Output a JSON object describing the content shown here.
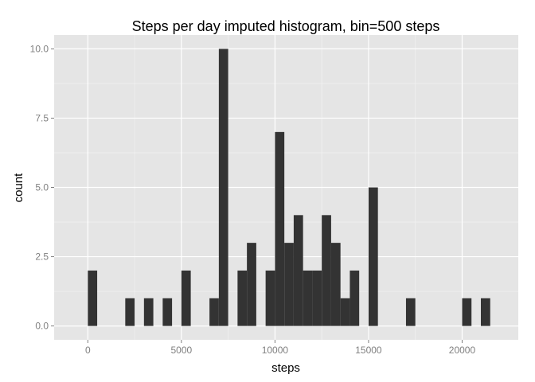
{
  "chart_data": {
    "type": "bar",
    "title": "Steps per day imputed histogram, bin=500 steps",
    "xlabel": "steps",
    "ylabel": "count",
    "bin_width": 500,
    "xlim": [
      -1800,
      23000
    ],
    "ylim": [
      -0.5,
      10.5
    ],
    "x_ticks": [
      0,
      5000,
      10000,
      15000,
      20000
    ],
    "x_tick_labels": [
      "0",
      "5000",
      "10000",
      "15000",
      "20000"
    ],
    "y_ticks": [
      0,
      2.5,
      5,
      7.5,
      10
    ],
    "y_tick_labels": [
      "0.0",
      "2.5",
      "5.0",
      "7.5",
      "10.0"
    ],
    "grid": true,
    "bins": [
      {
        "x0": 0,
        "x1": 500,
        "count": 2
      },
      {
        "x0": 2000,
        "x1": 2500,
        "count": 1
      },
      {
        "x0": 3000,
        "x1": 3500,
        "count": 1
      },
      {
        "x0": 4000,
        "x1": 4500,
        "count": 1
      },
      {
        "x0": 5000,
        "x1": 5500,
        "count": 2
      },
      {
        "x0": 6500,
        "x1": 7000,
        "count": 1
      },
      {
        "x0": 7000,
        "x1": 7500,
        "count": 10
      },
      {
        "x0": 8000,
        "x1": 8500,
        "count": 2
      },
      {
        "x0": 8500,
        "x1": 9000,
        "count": 3
      },
      {
        "x0": 9500,
        "x1": 10000,
        "count": 2
      },
      {
        "x0": 10000,
        "x1": 10500,
        "count": 7
      },
      {
        "x0": 10500,
        "x1": 11000,
        "count": 3
      },
      {
        "x0": 11000,
        "x1": 11500,
        "count": 4
      },
      {
        "x0": 11500,
        "x1": 12000,
        "count": 2
      },
      {
        "x0": 12000,
        "x1": 12500,
        "count": 2
      },
      {
        "x0": 12500,
        "x1": 13000,
        "count": 4
      },
      {
        "x0": 13000,
        "x1": 13500,
        "count": 3
      },
      {
        "x0": 13500,
        "x1": 14000,
        "count": 1
      },
      {
        "x0": 14000,
        "x1": 14500,
        "count": 2
      },
      {
        "x0": 15000,
        "x1": 15500,
        "count": 5
      },
      {
        "x0": 17000,
        "x1": 17500,
        "count": 1
      },
      {
        "x0": 20000,
        "x1": 20500,
        "count": 1
      },
      {
        "x0": 21000,
        "x1": 21500,
        "count": 1
      }
    ],
    "colors": {
      "panel": "#e5e5e5",
      "grid_major": "#ffffff",
      "grid_minor": "#f2f2f2",
      "bar": "#333333",
      "tick": "#7f7f7f"
    }
  }
}
